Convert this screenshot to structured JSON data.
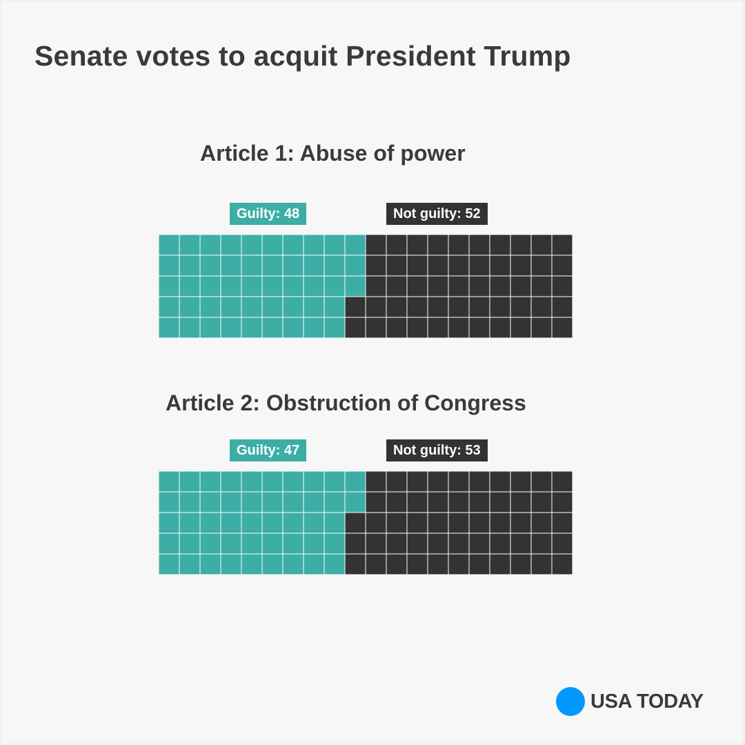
{
  "title": "Senate votes to acquit President Trump",
  "colors": {
    "guilty": "#3daea6",
    "not_guilty": "#333333",
    "brand_dot": "#0098fe"
  },
  "chart_data": [
    {
      "type": "waffle",
      "title": "Article 1: Abuse of power",
      "categories": [
        "Guilty",
        "Not guilty"
      ],
      "values": [
        48,
        52
      ],
      "labels": [
        "Guilty: 48",
        "Not guilty: 52"
      ],
      "grid": {
        "columns": 20,
        "rows": 5
      }
    },
    {
      "type": "waffle",
      "title": "Article 2: Obstruction of Congress",
      "categories": [
        "Guilty",
        "Not guilty"
      ],
      "values": [
        47,
        53
      ],
      "labels": [
        "Guilty: 47",
        "Not guilty: 53"
      ],
      "grid": {
        "columns": 20,
        "rows": 5
      }
    }
  ],
  "brand": {
    "name": "USA TODAY",
    "logo_icon": "usa-today-dot-icon"
  }
}
